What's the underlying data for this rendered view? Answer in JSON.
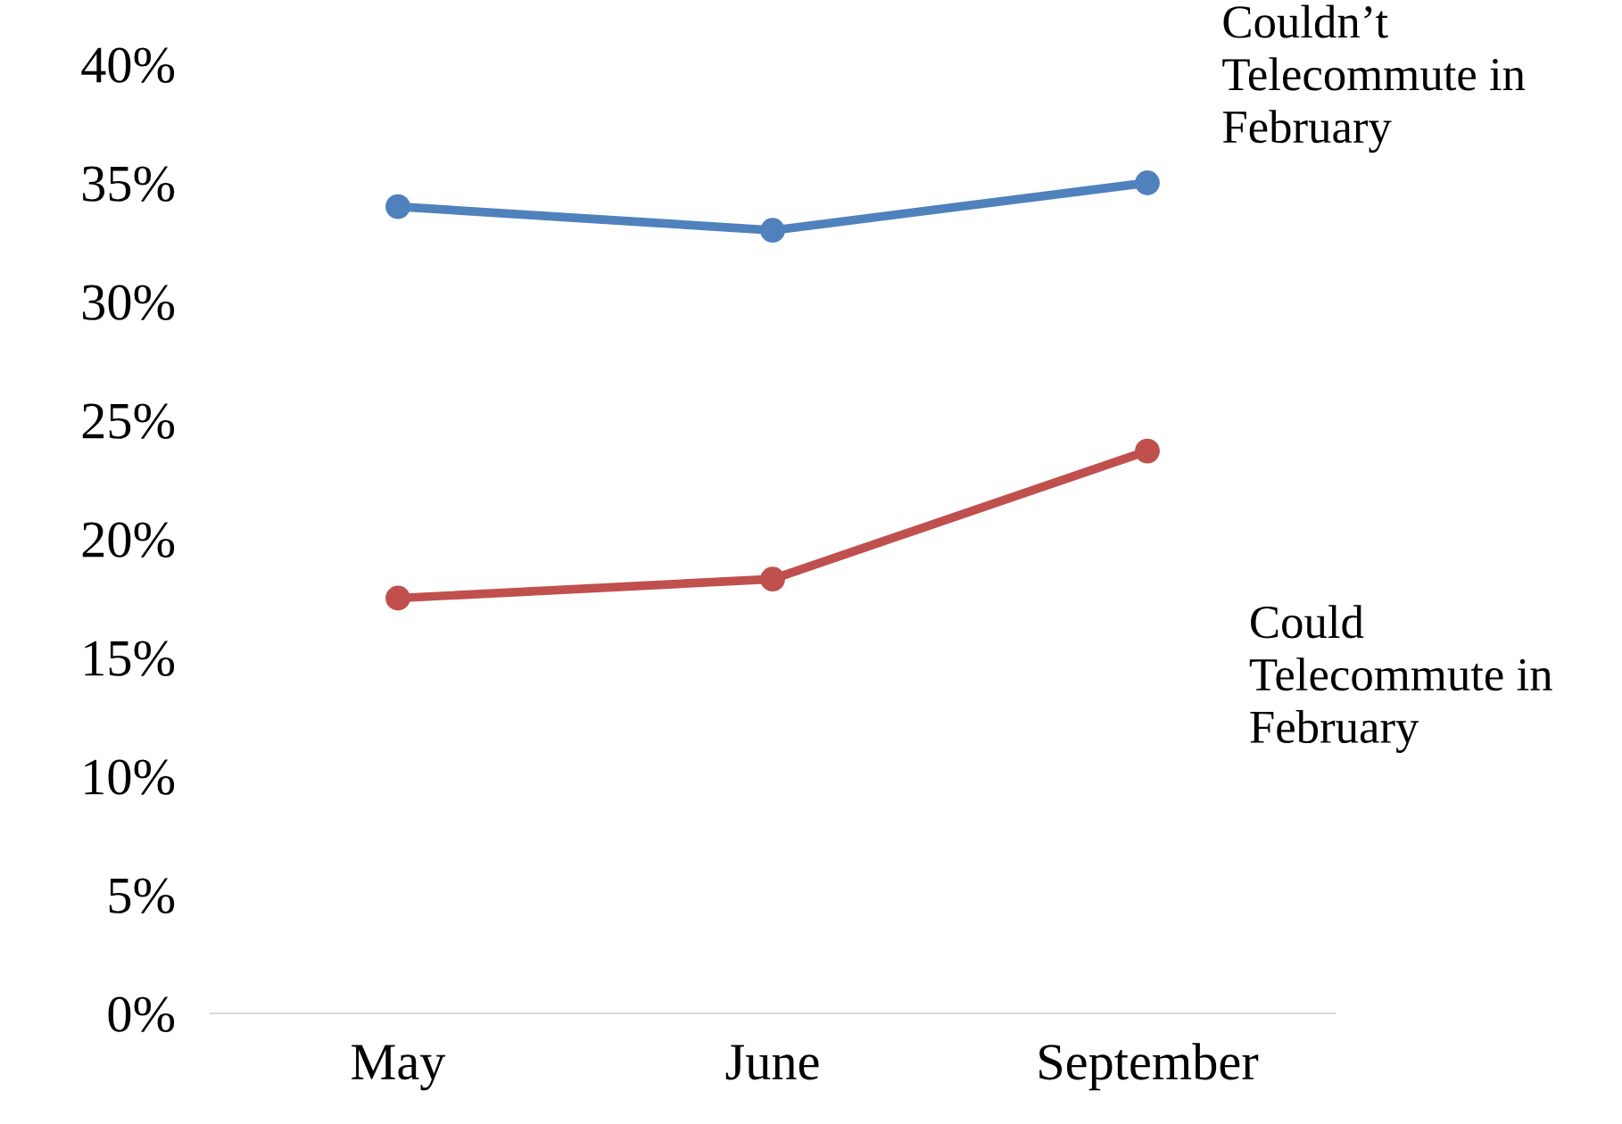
{
  "chart_data": {
    "type": "line",
    "categories": [
      "May",
      "June",
      "September"
    ],
    "series": [
      {
        "name": "Couldn’t\nTelecommute in\nFebruary",
        "color": "#4f81bd",
        "values": [
          34,
          33,
          35
        ]
      },
      {
        "name": "Could\nTelecommute in\nFebruary",
        "color": "#c0504d",
        "values": [
          17.5,
          18.3,
          23.7
        ]
      }
    ],
    "ylim": [
      0,
      40
    ],
    "yticks": [
      {
        "value": 0,
        "label": "0%"
      },
      {
        "value": 5,
        "label": "5%"
      },
      {
        "value": 10,
        "label": "10%"
      },
      {
        "value": 15,
        "label": "15%"
      },
      {
        "value": 20,
        "label": "20%"
      },
      {
        "value": 25,
        "label": "25%"
      },
      {
        "value": 30,
        "label": "30%"
      },
      {
        "value": 35,
        "label": "35%"
      },
      {
        "value": 40,
        "label": "40%"
      }
    ],
    "grid": false,
    "legend": false,
    "marker": "circle",
    "line_style": "solid"
  }
}
